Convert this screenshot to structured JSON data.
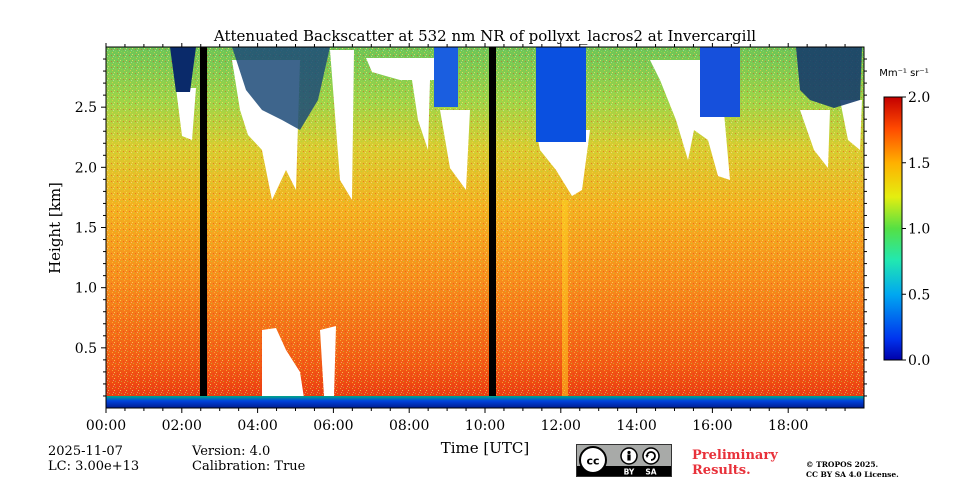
{
  "chart_data": {
    "type": "heatmap",
    "title": "Attenuated Backscatter at 532 nm NR of pollyxt_lacros2 at Invercargill",
    "xlabel": "Time [UTC]",
    "ylabel": "Height [km]",
    "x_ticks": [
      "00:00",
      "02:00",
      "04:00",
      "06:00",
      "08:00",
      "10:00",
      "12:00",
      "14:00",
      "16:00",
      "18:00"
    ],
    "x_range_hours": [
      0,
      20
    ],
    "y_ticks": [
      0.5,
      1.0,
      1.5,
      2.0,
      2.5
    ],
    "y_tick_labels": [
      "0.5",
      "1.0",
      "1.5",
      "2.0",
      "2.5"
    ],
    "y_range_km": [
      0,
      3.0
    ],
    "colorbar": {
      "unit_label": "Mm⁻¹ sr⁻¹",
      "range": [
        0.0,
        2.0
      ],
      "ticks": [
        0.0,
        0.5,
        1.0,
        1.5,
        2.0
      ],
      "tick_labels": [
        "0.0",
        "0.5",
        "1.0",
        "1.5",
        "2.0"
      ],
      "colormap": "jet"
    },
    "no_data_bands_hours": [
      [
        2.55,
        2.75
      ],
      [
        10.15,
        10.35
      ]
    ],
    "low_cloud_bands_hours": [
      [
        11.3,
        12.6
      ],
      [
        8.6,
        9.1
      ],
      [
        15.7,
        17.0
      ]
    ]
  },
  "meta": {
    "date": "2025-11-07",
    "lc": "LC: 3.00e+13",
    "version": "Version: 4.0",
    "calibration": "Calibration: True"
  },
  "license": {
    "cc_glyph": "cc",
    "by_text": "BY",
    "sa_text": "SA",
    "preliminary_line1": "Preliminary",
    "preliminary_line2": "Results.",
    "copyright_line1": "© TROPOS 2025.",
    "copyright_line2": "CC BY SA 4.0 License."
  }
}
